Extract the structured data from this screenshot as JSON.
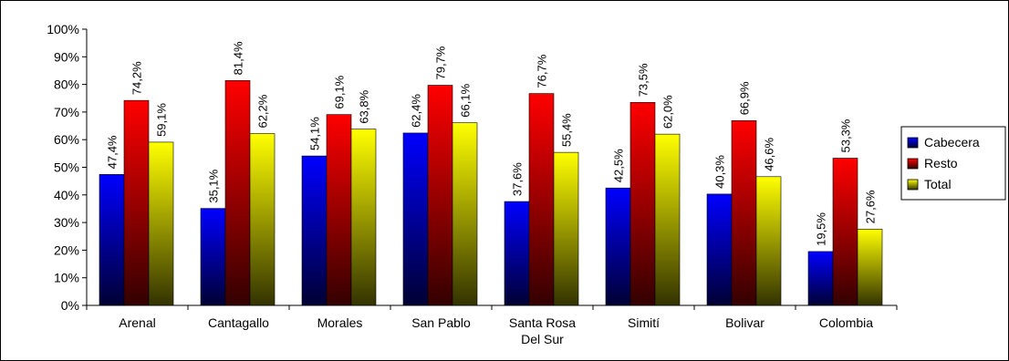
{
  "chart_data": {
    "type": "bar",
    "categories": [
      [
        "Arenal"
      ],
      [
        "Cantagallo"
      ],
      [
        "Morales"
      ],
      [
        "San Pablo"
      ],
      [
        "Santa Rosa",
        "Del Sur"
      ],
      [
        "Simití"
      ],
      [
        "Bolivar"
      ],
      [
        "Colombia"
      ]
    ],
    "series": [
      {
        "name": "Cabecera",
        "color": "#0000ff",
        "gradient_end": "#000033",
        "values": [
          47.4,
          35.1,
          54.1,
          62.4,
          37.6,
          42.5,
          40.3,
          19.5
        ],
        "labels": [
          "47,4%",
          "35,1%",
          "54,1%",
          "62,4%",
          "37,6%",
          "42,5%",
          "40,3%",
          "19,5%"
        ]
      },
      {
        "name": "Resto",
        "color": "#ff0000",
        "gradient_end": "#330000",
        "values": [
          74.2,
          81.4,
          69.1,
          79.7,
          76.7,
          73.5,
          66.9,
          53.3
        ],
        "labels": [
          "74,2%",
          "81,4%",
          "69,1%",
          "79,7%",
          "76,7%",
          "73,5%",
          "66,9%",
          "53,3%"
        ]
      },
      {
        "name": "Total",
        "color": "#ffff00",
        "gradient_end": "#333300",
        "values": [
          59.1,
          62.2,
          63.8,
          66.1,
          55.4,
          62.0,
          46.6,
          27.6
        ],
        "labels": [
          "59,1%",
          "62,2%",
          "63,8%",
          "66,1%",
          "55,4%",
          "62,0%",
          "46,6%",
          "27,6%"
        ]
      }
    ],
    "yticks": [
      "0%",
      "10%",
      "20%",
      "30%",
      "40%",
      "50%",
      "60%",
      "70%",
      "80%",
      "90%",
      "100%"
    ],
    "ylim": [
      0,
      100
    ],
    "grid": false,
    "legend_position": "right"
  }
}
